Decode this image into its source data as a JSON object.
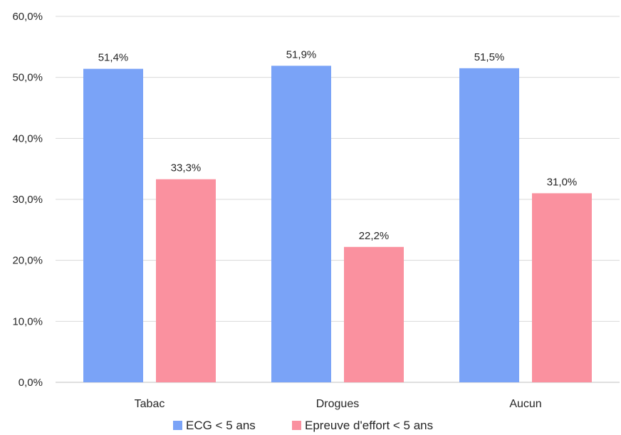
{
  "chart_data": {
    "type": "bar",
    "title": "",
    "xlabel": "",
    "ylabel": "",
    "categories": [
      "Tabac",
      "Drogues",
      "Aucun"
    ],
    "series": [
      {
        "name": "ECG < 5 ans",
        "values": [
          51.4,
          51.9,
          51.5
        ],
        "labels": [
          "51,4%",
          "51,9%",
          "51,5%"
        ],
        "color": "#7aa3f7"
      },
      {
        "name": "Epreuve d'effort < 5 ans",
        "values": [
          33.3,
          22.2,
          31.0
        ],
        "labels": [
          "33,3%",
          "22,2%",
          "31,0%"
        ],
        "color": "#fa919f"
      }
    ],
    "ylim": [
      0,
      60
    ],
    "yticks": [
      0,
      10,
      20,
      30,
      40,
      50,
      60
    ],
    "ytick_labels": [
      "0,0%",
      "10,0%",
      "20,0%",
      "30,0%",
      "40,0%",
      "50,0%",
      "60,0%"
    ],
    "grid": true,
    "gridline_color": "#d9d9d9",
    "legend_position": "bottom"
  }
}
